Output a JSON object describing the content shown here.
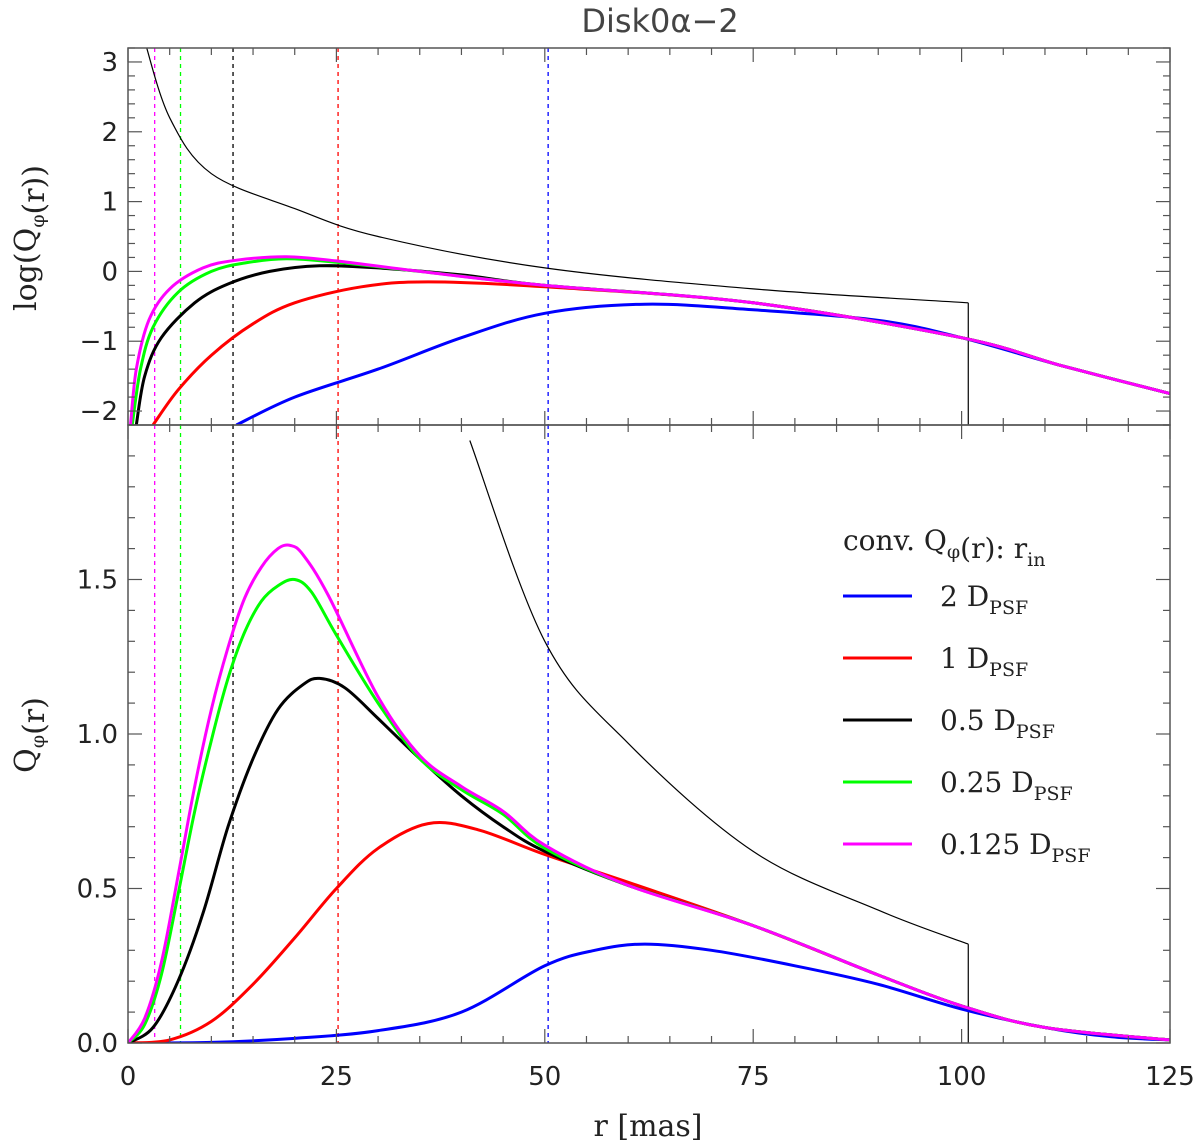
{
  "chart_data": {
    "title": "Disk0α−2",
    "xlabel": "r [mas]",
    "xlim": [
      0,
      125
    ],
    "xticks": [
      0,
      25,
      50,
      75,
      100,
      125
    ],
    "panels": [
      {
        "id": "top",
        "type": "line",
        "ylabel": "log(Qφ(r))",
        "ylim": [
          -2.2,
          3.2
        ],
        "yticks": [
          -2,
          -1,
          0,
          1,
          2,
          3
        ]
      },
      {
        "id": "bottom",
        "type": "line",
        "ylabel": "Qφ(r)",
        "ylim": [
          0,
          2.0
        ],
        "yticks": [
          0.0,
          0.5,
          1.0,
          1.5
        ],
        "ytick_labels": [
          "0.0",
          "0.5",
          "1.0",
          "1.5"
        ]
      }
    ],
    "legend": {
      "title": "conv. Qφ(r): r_in",
      "position": "right, bottom panel",
      "entries": [
        {
          "label": "2 D_PSF",
          "color": "#0000ff"
        },
        {
          "label": "1 D_PSF",
          "color": "#ff0000"
        },
        {
          "label": "0.5 D_PSF",
          "color": "#000000"
        },
        {
          "label": "0.25 D_PSF",
          "color": "#00ff00"
        },
        {
          "label": "0.125 D_PSF",
          "color": "#ff00ff"
        }
      ]
    },
    "intrinsic": {
      "r_in": 3.2,
      "r_out": 100.8,
      "log_values": [
        {
          "r": 2,
          "v": 3.3
        },
        {
          "r": 5,
          "v": 2.2
        },
        {
          "r": 10,
          "v": 1.4
        },
        {
          "r": 20,
          "v": 0.9
        },
        {
          "r": 30,
          "v": 0.5
        },
        {
          "r": 50,
          "v": 0.05
        },
        {
          "r": 75,
          "v": -0.25
        },
        {
          "r": 100.8,
          "v": -0.45
        }
      ],
      "linear_values": [
        {
          "r": 41,
          "v": 1.95
        },
        {
          "r": 50,
          "v": 1.3
        },
        {
          "r": 60,
          "v": 0.97
        },
        {
          "r": 75,
          "v": 0.62
        },
        {
          "r": 90,
          "v": 0.43
        },
        {
          "r": 100.8,
          "v": 0.32
        }
      ]
    },
    "inner_radius_markers": [
      {
        "r": 3.2,
        "color": "#ff00ff"
      },
      {
        "r": 6.3,
        "color": "#00ff00"
      },
      {
        "r": 12.6,
        "color": "#000000"
      },
      {
        "r": 25.2,
        "color": "#ff0000"
      },
      {
        "r": 50.4,
        "color": "#0000ff"
      }
    ],
    "series": [
      {
        "name": "2 D_PSF",
        "color": "#0000ff",
        "log_values": [
          {
            "r": 13,
            "v": -2.2
          },
          {
            "r": 20,
            "v": -1.8
          },
          {
            "r": 30,
            "v": -1.4
          },
          {
            "r": 40,
            "v": -0.95
          },
          {
            "r": 50,
            "v": -0.6
          },
          {
            "r": 62,
            "v": -0.47
          },
          {
            "r": 75,
            "v": -0.55
          },
          {
            "r": 90,
            "v": -0.7
          },
          {
            "r": 100,
            "v": -0.95
          },
          {
            "r": 112,
            "v": -1.35
          },
          {
            "r": 125,
            "v": -1.75
          }
        ],
        "linear_values": [
          {
            "r": 0,
            "v": 0
          },
          {
            "r": 10,
            "v": 0.002
          },
          {
            "r": 20,
            "v": 0.015
          },
          {
            "r": 30,
            "v": 0.04
          },
          {
            "r": 40,
            "v": 0.1
          },
          {
            "r": 50,
            "v": 0.25
          },
          {
            "r": 56,
            "v": 0.3
          },
          {
            "r": 62,
            "v": 0.32
          },
          {
            "r": 70,
            "v": 0.3
          },
          {
            "r": 80,
            "v": 0.25
          },
          {
            "r": 90,
            "v": 0.19
          },
          {
            "r": 100,
            "v": 0.11
          },
          {
            "r": 110,
            "v": 0.05
          },
          {
            "r": 118,
            "v": 0.02
          },
          {
            "r": 125,
            "v": 0.01
          }
        ]
      },
      {
        "name": "1 D_PSF",
        "color": "#ff0000",
        "log_values": [
          {
            "r": 3,
            "v": -2.2
          },
          {
            "r": 6,
            "v": -1.7
          },
          {
            "r": 10,
            "v": -1.2
          },
          {
            "r": 15,
            "v": -0.75
          },
          {
            "r": 20,
            "v": -0.45
          },
          {
            "r": 28,
            "v": -0.22
          },
          {
            "r": 36,
            "v": -0.15
          },
          {
            "r": 50,
            "v": -0.22
          },
          {
            "r": 75,
            "v": -0.45
          },
          {
            "r": 100,
            "v": -0.95
          },
          {
            "r": 112,
            "v": -1.35
          },
          {
            "r": 125,
            "v": -1.75
          }
        ],
        "linear_values": [
          {
            "r": 0,
            "v": 0
          },
          {
            "r": 5,
            "v": 0.01
          },
          {
            "r": 10,
            "v": 0.07
          },
          {
            "r": 15,
            "v": 0.19
          },
          {
            "r": 20,
            "v": 0.34
          },
          {
            "r": 25,
            "v": 0.5
          },
          {
            "r": 30,
            "v": 0.63
          },
          {
            "r": 36,
            "v": 0.71
          },
          {
            "r": 42,
            "v": 0.69
          },
          {
            "r": 50,
            "v": 0.61
          },
          {
            "r": 60,
            "v": 0.52
          },
          {
            "r": 75,
            "v": 0.38
          },
          {
            "r": 90,
            "v": 0.22
          },
          {
            "r": 100,
            "v": 0.12
          },
          {
            "r": 110,
            "v": 0.05
          },
          {
            "r": 125,
            "v": 0.01
          }
        ]
      },
      {
        "name": "0.5 D_PSF",
        "color": "#000000",
        "log_values": [
          {
            "r": 1,
            "v": -2.2
          },
          {
            "r": 2,
            "v": -1.5
          },
          {
            "r": 4,
            "v": -0.95
          },
          {
            "r": 8,
            "v": -0.45
          },
          {
            "r": 12,
            "v": -0.18
          },
          {
            "r": 17,
            "v": 0.0
          },
          {
            "r": 23,
            "v": 0.08
          },
          {
            "r": 30,
            "v": 0.05
          },
          {
            "r": 40,
            "v": -0.05
          },
          {
            "r": 50,
            "v": -0.2
          },
          {
            "r": 75,
            "v": -0.45
          },
          {
            "r": 100,
            "v": -0.95
          },
          {
            "r": 112,
            "v": -1.35
          },
          {
            "r": 125,
            "v": -1.75
          }
        ],
        "linear_values": [
          {
            "r": 0,
            "v": 0
          },
          {
            "r": 3,
            "v": 0.05
          },
          {
            "r": 6,
            "v": 0.2
          },
          {
            "r": 9,
            "v": 0.42
          },
          {
            "r": 12,
            "v": 0.7
          },
          {
            "r": 15,
            "v": 0.92
          },
          {
            "r": 18,
            "v": 1.08
          },
          {
            "r": 21,
            "v": 1.16
          },
          {
            "r": 23,
            "v": 1.18
          },
          {
            "r": 26,
            "v": 1.15
          },
          {
            "r": 30,
            "v": 1.05
          },
          {
            "r": 35,
            "v": 0.92
          },
          {
            "r": 40,
            "v": 0.8
          },
          {
            "r": 45,
            "v": 0.7
          },
          {
            "r": 50,
            "v": 0.62
          },
          {
            "r": 60,
            "v": 0.51
          },
          {
            "r": 75,
            "v": 0.38
          },
          {
            "r": 90,
            "v": 0.22
          },
          {
            "r": 100,
            "v": 0.12
          },
          {
            "r": 110,
            "v": 0.05
          },
          {
            "r": 125,
            "v": 0.01
          }
        ]
      },
      {
        "name": "0.25 D_PSF",
        "color": "#00ff00",
        "log_values": [
          {
            "r": 0.5,
            "v": -2.2
          },
          {
            "r": 1.5,
            "v": -1.4
          },
          {
            "r": 3,
            "v": -0.8
          },
          {
            "r": 6,
            "v": -0.3
          },
          {
            "r": 10,
            "v": 0.0
          },
          {
            "r": 14,
            "v": 0.12
          },
          {
            "r": 19,
            "v": 0.18
          },
          {
            "r": 25,
            "v": 0.13
          },
          {
            "r": 35,
            "v": 0.0
          },
          {
            "r": 50,
            "v": -0.2
          },
          {
            "r": 75,
            "v": -0.45
          },
          {
            "r": 100,
            "v": -0.95
          },
          {
            "r": 112,
            "v": -1.35
          },
          {
            "r": 125,
            "v": -1.75
          }
        ],
        "linear_values": [
          {
            "r": 0,
            "v": 0
          },
          {
            "r": 2,
            "v": 0.06
          },
          {
            "r": 4,
            "v": 0.22
          },
          {
            "r": 6,
            "v": 0.48
          },
          {
            "r": 8,
            "v": 0.75
          },
          {
            "r": 10,
            "v": 0.98
          },
          {
            "r": 12,
            "v": 1.18
          },
          {
            "r": 14,
            "v": 1.33
          },
          {
            "r": 16,
            "v": 1.43
          },
          {
            "r": 18,
            "v": 1.48
          },
          {
            "r": 20,
            "v": 1.5
          },
          {
            "r": 22,
            "v": 1.46
          },
          {
            "r": 25,
            "v": 1.32
          },
          {
            "r": 30,
            "v": 1.1
          },
          {
            "r": 35,
            "v": 0.92
          },
          {
            "r": 40,
            "v": 0.82
          },
          {
            "r": 45,
            "v": 0.74
          },
          {
            "r": 50,
            "v": 0.63
          },
          {
            "r": 60,
            "v": 0.51
          },
          {
            "r": 75,
            "v": 0.38
          },
          {
            "r": 90,
            "v": 0.22
          },
          {
            "r": 100,
            "v": 0.12
          },
          {
            "r": 110,
            "v": 0.05
          },
          {
            "r": 125,
            "v": 0.01
          }
        ]
      },
      {
        "name": "0.125 D_PSF",
        "color": "#ff00ff",
        "log_values": [
          {
            "r": 0.3,
            "v": -2.2
          },
          {
            "r": 1,
            "v": -1.4
          },
          {
            "r": 2.5,
            "v": -0.7
          },
          {
            "r": 5,
            "v": -0.25
          },
          {
            "r": 9,
            "v": 0.05
          },
          {
            "r": 13,
            "v": 0.16
          },
          {
            "r": 19,
            "v": 0.21
          },
          {
            "r": 25,
            "v": 0.15
          },
          {
            "r": 35,
            "v": 0.0
          },
          {
            "r": 50,
            "v": -0.2
          },
          {
            "r": 75,
            "v": -0.45
          },
          {
            "r": 100,
            "v": -0.95
          },
          {
            "r": 112,
            "v": -1.35
          },
          {
            "r": 125,
            "v": -1.75
          }
        ],
        "linear_values": [
          {
            "r": 0,
            "v": 0
          },
          {
            "r": 2,
            "v": 0.08
          },
          {
            "r": 4,
            "v": 0.26
          },
          {
            "r": 6,
            "v": 0.54
          },
          {
            "r": 8,
            "v": 0.83
          },
          {
            "r": 10,
            "v": 1.08
          },
          {
            "r": 12,
            "v": 1.28
          },
          {
            "r": 14,
            "v": 1.44
          },
          {
            "r": 16,
            "v": 1.54
          },
          {
            "r": 18,
            "v": 1.6
          },
          {
            "r": 19.5,
            "v": 1.61
          },
          {
            "r": 21,
            "v": 1.58
          },
          {
            "r": 24,
            "v": 1.45
          },
          {
            "r": 30,
            "v": 1.12
          },
          {
            "r": 35,
            "v": 0.93
          },
          {
            "r": 40,
            "v": 0.83
          },
          {
            "r": 45,
            "v": 0.75
          },
          {
            "r": 50,
            "v": 0.64
          },
          {
            "r": 60,
            "v": 0.51
          },
          {
            "r": 75,
            "v": 0.38
          },
          {
            "r": 90,
            "v": 0.22
          },
          {
            "r": 100,
            "v": 0.12
          },
          {
            "r": 110,
            "v": 0.05
          },
          {
            "r": 125,
            "v": 0.01
          }
        ]
      }
    ]
  }
}
